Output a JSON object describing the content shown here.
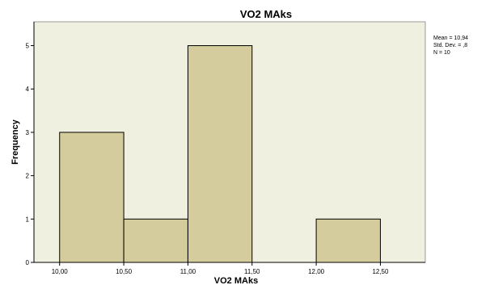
{
  "chart_data": {
    "type": "bar",
    "title": "VO2 MAks",
    "xlabel": "VO2 MAks",
    "ylabel": "Frequency",
    "bins": [
      {
        "start": 10.0,
        "end": 10.5,
        "count": 3
      },
      {
        "start": 10.5,
        "end": 11.0,
        "count": 1
      },
      {
        "start": 11.0,
        "end": 11.5,
        "count": 5
      },
      {
        "start": 11.5,
        "end": 12.0,
        "count": 0
      },
      {
        "start": 12.0,
        "end": 12.5,
        "count": 1
      }
    ],
    "x_ticks": [
      "10,00",
      "10,50",
      "11,00",
      "11,50",
      "12,00",
      "12,50"
    ],
    "y_ticks": [
      "0",
      "1",
      "2",
      "3",
      "4",
      "5"
    ],
    "xlim": [
      9.8,
      12.85
    ],
    "ylim": [
      0,
      5.55
    ],
    "bar_color": "#d4cc9c",
    "plot_bg": "#f0f0e0",
    "grid": false,
    "stats": [
      "Mean = 10,94",
      "Std. Dev. = ,8",
      "N = 10"
    ]
  }
}
